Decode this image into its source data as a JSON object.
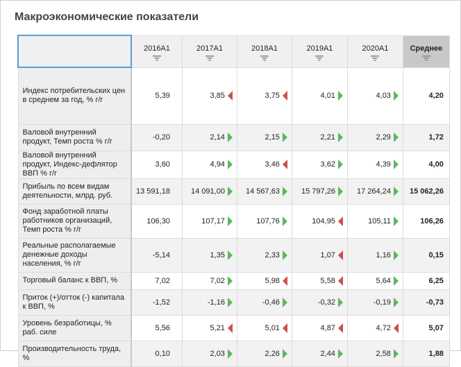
{
  "title": "Макроэкономические показатели",
  "colors": {
    "up": "#5cb85c",
    "down": "#c9504c",
    "header_avg": "#c8c8c8",
    "selection": "#5b9bd5"
  },
  "columns": [
    "2016A1",
    "2017A1",
    "2018A1",
    "2019A1",
    "2020A1",
    "Среднее"
  ],
  "rows": [
    {
      "label": "Индекс  потребительских цен в среднем за год, % г/г",
      "values": [
        "5,39",
        "3,85",
        "3,75",
        "4,01",
        "4,03"
      ],
      "trend": [
        "",
        "down",
        "down",
        "up",
        "up"
      ],
      "avg": "4,20"
    },
    {
      "label": "Валовой внутренний продукт, Темп роста % г/г",
      "values": [
        "-0,20",
        "2,14",
        "2,15",
        "2,21",
        "2,29"
      ],
      "trend": [
        "",
        "up",
        "up",
        "up",
        "up"
      ],
      "avg": "1,72"
    },
    {
      "label": "Валовой внутренний продукт, Индекс-дефлятор ВВП % г/г",
      "values": [
        "3,60",
        "4,94",
        "3,46",
        "3,62",
        "4,39"
      ],
      "trend": [
        "",
        "up",
        "down",
        "up",
        "up"
      ],
      "avg": "4,00"
    },
    {
      "label": "Прибыль по всем видам деятельности, млрд. руб.",
      "values": [
        "13 591,18",
        "14 091,00",
        "14 567,63",
        "15 797,26",
        "17 264,24"
      ],
      "trend": [
        "",
        "up",
        "up",
        "up",
        "up"
      ],
      "avg": "15 062,26"
    },
    {
      "label": "Фонд заработной платы работников организаций, Темп роста % г/г",
      "values": [
        "106,30",
        "107,17",
        "107,76",
        "104,95",
        "105,11"
      ],
      "trend": [
        "",
        "up",
        "up",
        "down",
        "up"
      ],
      "avg": "106,26"
    },
    {
      "label": "Реальные располагаемые денежные доходы населения, % г/г",
      "values": [
        "-5,14",
        "1,35",
        "2,33",
        "1,07",
        "1,16"
      ],
      "trend": [
        "",
        "up",
        "up",
        "down",
        "up"
      ],
      "avg": "0,15"
    },
    {
      "label": "Торговый баланс к ВВП, %",
      "values": [
        "7,02",
        "7,02",
        "5,98",
        "5,58",
        "5,64"
      ],
      "trend": [
        "",
        "up",
        "down",
        "down",
        "up"
      ],
      "avg": "6,25"
    },
    {
      "label": "Приток (+)/отток (-) капитала к ВВП, %",
      "values": [
        "-1,52",
        "-1,16",
        "-0,46",
        "-0,32",
        "-0,19"
      ],
      "trend": [
        "",
        "up",
        "up",
        "up",
        "up"
      ],
      "avg": "-0,73"
    },
    {
      "label": "Уровень безработицы, % раб. силе",
      "values": [
        "5,56",
        "5,21",
        "5,01",
        "4,87",
        "4,72"
      ],
      "trend": [
        "",
        "down",
        "down",
        "down",
        "down"
      ],
      "avg": "5,07"
    },
    {
      "label": "Производительность труда, %",
      "values": [
        "0,10",
        "2,03",
        "2,26",
        "2,44",
        "2,58"
      ],
      "trend": [
        "",
        "up",
        "up",
        "up",
        "up"
      ],
      "avg": "1,88"
    }
  ]
}
